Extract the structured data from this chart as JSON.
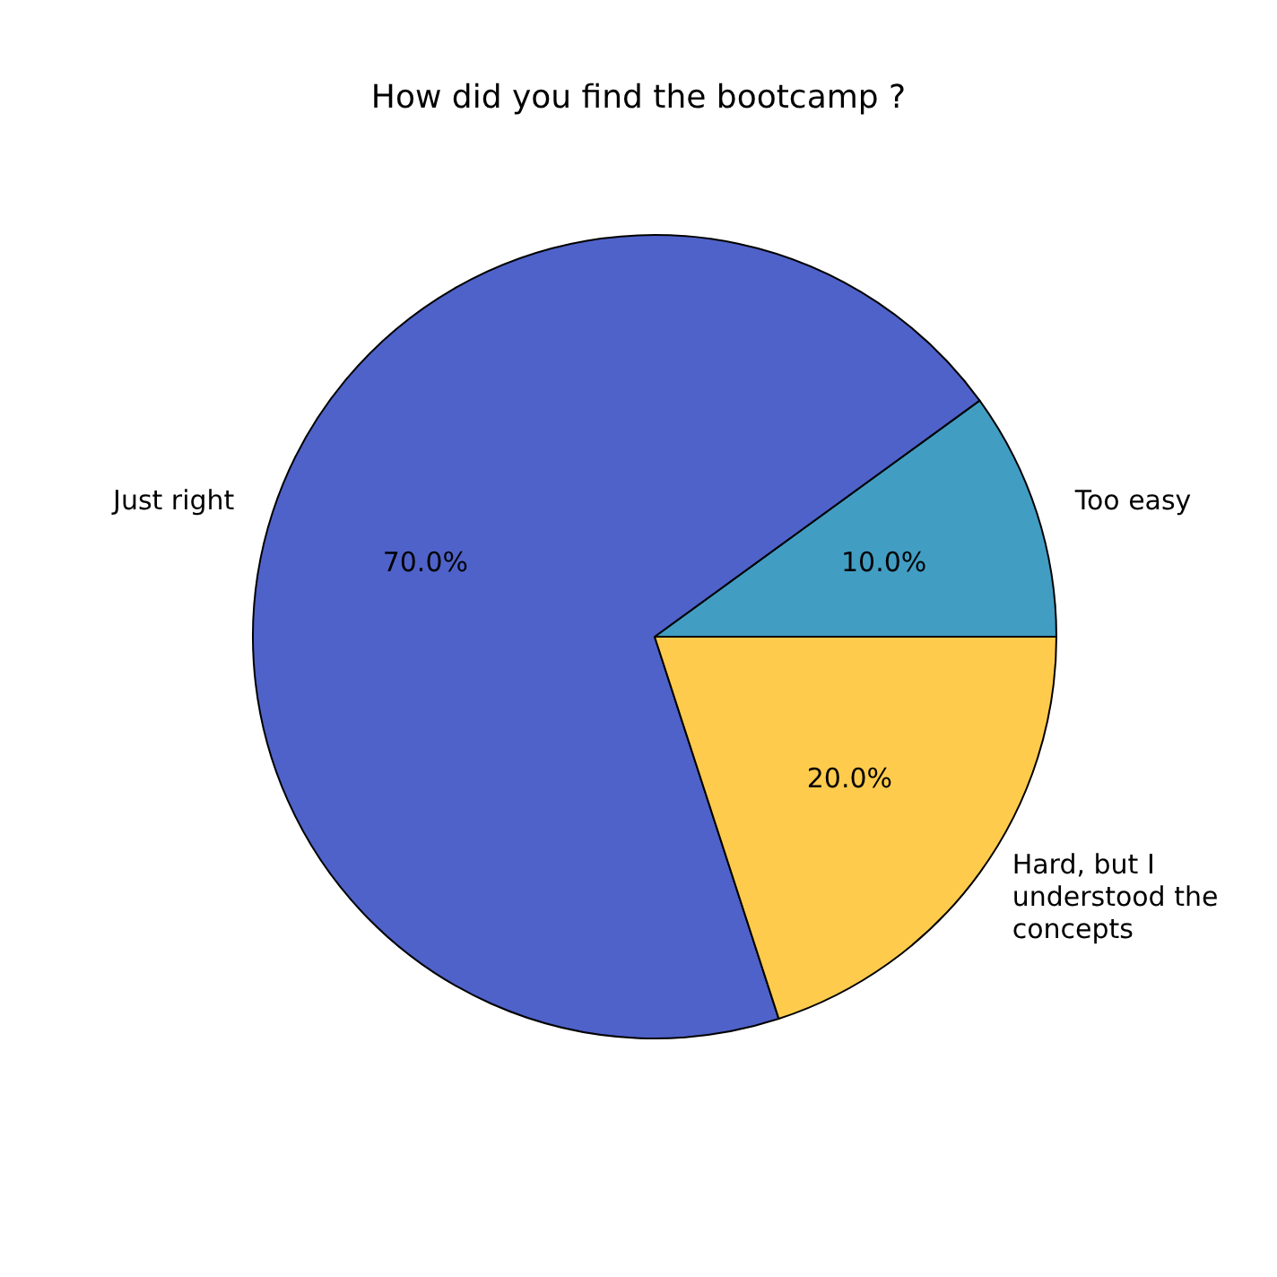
{
  "chart_data": {
    "type": "pie",
    "title": "How did you find the bootcamp ?",
    "categories": [
      "Too easy",
      "Just right",
      "Hard, but I understood the concepts"
    ],
    "values": [
      10,
      70,
      20
    ],
    "colors": [
      "#429dc3",
      "#4f62c9",
      "#ffcb4d"
    ],
    "value_labels": [
      "10.0%",
      "70.0%",
      "20.0%"
    ]
  }
}
